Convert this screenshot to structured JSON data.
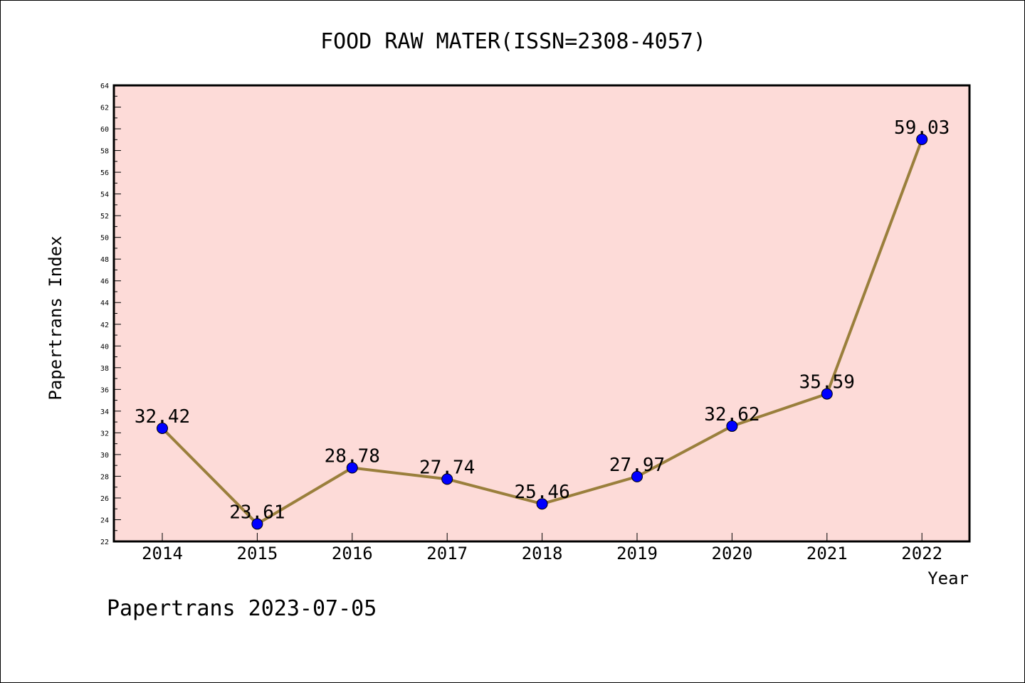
{
  "chart_data": {
    "type": "line",
    "title": "FOOD RAW MATER(ISSN=2308-4057)",
    "xlabel": "Year",
    "ylabel": "Papertrans Index",
    "categories": [
      "2014",
      "2015",
      "2016",
      "2017",
      "2018",
      "2019",
      "2020",
      "2021",
      "2022"
    ],
    "series": [
      {
        "values": [
          32.42,
          23.61,
          28.78,
          27.74,
          25.46,
          27.97,
          32.62,
          35.59,
          59.03
        ],
        "labels": [
          "32.42",
          "23.61",
          "28.78",
          "27.74",
          "25.46",
          "27.97",
          "32.62",
          "35.59",
          "59.03"
        ]
      }
    ],
    "ylim": [
      22,
      64
    ],
    "yticks": [
      "22",
      "24",
      "26",
      "28",
      "30",
      "32",
      "34",
      "36",
      "38",
      "40",
      "42",
      "44",
      "46",
      "48",
      "50",
      "52",
      "54",
      "56",
      "58",
      "60",
      "62",
      "64"
    ],
    "grid": false,
    "colors": {
      "plot_background": "#fddbd8",
      "line": "#9a7f3c",
      "marker": "#0000ff"
    }
  },
  "footer": "Papertrans 2023-07-05"
}
